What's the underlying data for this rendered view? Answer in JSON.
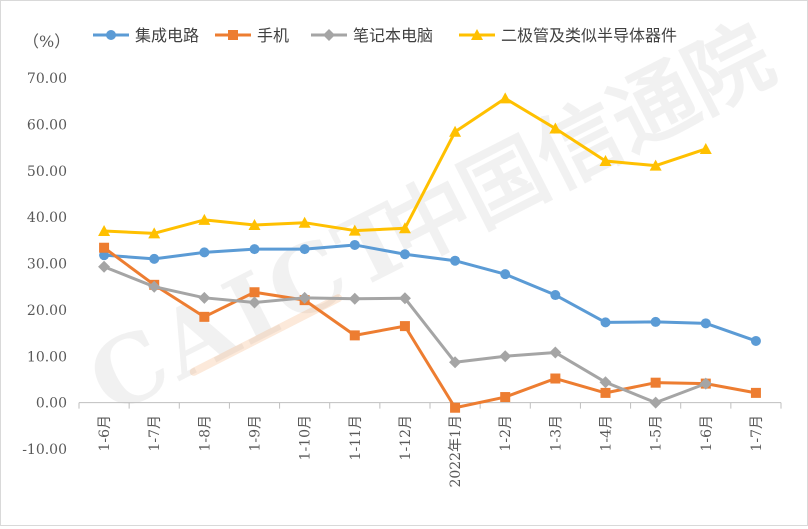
{
  "chart_data": {
    "type": "line",
    "unit_label": "（%）",
    "categories": [
      "1-6月",
      "1-7月",
      "1-8月",
      "1-9月",
      "1-10月",
      "1-11月",
      "1-12月",
      "2022年1月",
      "1-2月",
      "1-3月",
      "1-4月",
      "1-5月",
      "1-6月",
      "1-7月"
    ],
    "ylim": [
      -10,
      70
    ],
    "yticks": [
      "-10.00",
      "0.00",
      "10.00",
      "20.00",
      "30.00",
      "40.00",
      "50.00",
      "60.00",
      "70.00"
    ],
    "grid": false,
    "legend_position": "top",
    "series": [
      {
        "name": "集成电路",
        "color": "#5B9BD5",
        "marker": "circle",
        "values": [
          31.8,
          31.0,
          32.4,
          33.1,
          33.1,
          34.0,
          32.0,
          30.6,
          27.7,
          23.2,
          17.3,
          17.4,
          17.1,
          13.3
        ]
      },
      {
        "name": "手机",
        "color": "#ED7D31",
        "marker": "square",
        "values": [
          33.4,
          25.4,
          18.5,
          23.8,
          22.1,
          14.5,
          16.5,
          -1.1,
          1.2,
          5.2,
          2.1,
          4.3,
          4.1,
          2.1
        ]
      },
      {
        "name": "笔记本电脑",
        "color": "#A5A5A5",
        "marker": "diamond",
        "values": [
          29.3,
          25.0,
          22.6,
          21.6,
          22.6,
          22.4,
          22.5,
          8.7,
          10.0,
          10.8,
          4.4,
          0.0,
          4.1,
          null
        ]
      },
      {
        "name": "二极管及类似半导体器件",
        "color": "#FFC000",
        "marker": "triangle",
        "values": [
          37.0,
          36.5,
          39.4,
          38.3,
          38.8,
          37.1,
          37.6,
          58.4,
          65.6,
          59.1,
          52.1,
          51.1,
          54.7,
          null
        ]
      }
    ]
  },
  "watermark": {
    "logo_text": "CAICT 中国信通院"
  }
}
